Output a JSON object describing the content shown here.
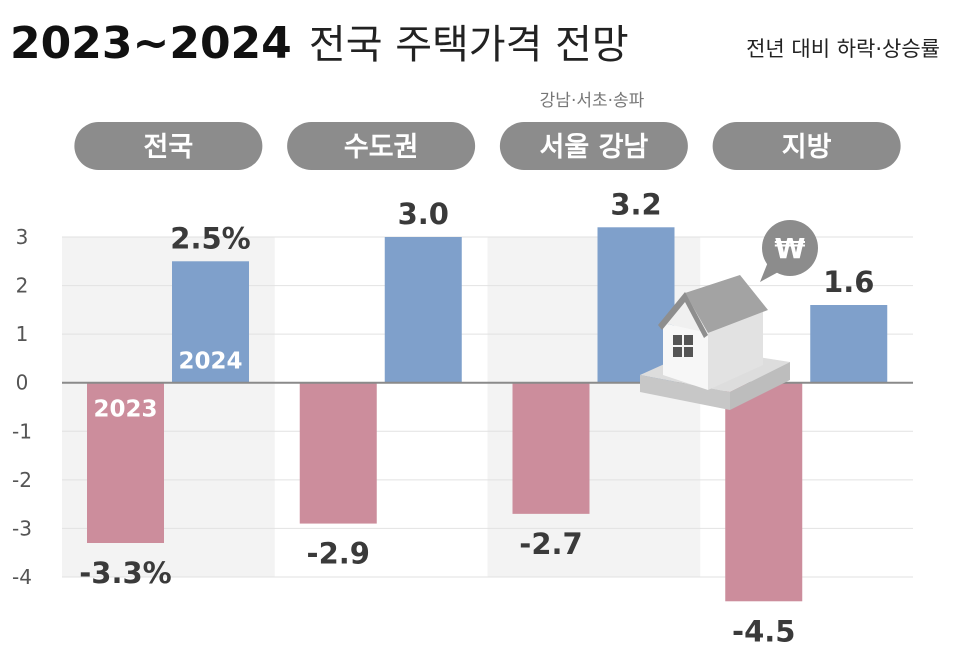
{
  "title": {
    "year_range": "2023~2024",
    "rest": "전국 주택가격 전망"
  },
  "subtitle": "전년 대비 하락·상승률",
  "note": "강남·서초·송파",
  "colors": {
    "bar_2023": "#CC8D9C",
    "bar_2024": "#7FA0CB",
    "pill": "#8C8C8C",
    "band": "#F3F3F3"
  },
  "icons": {
    "house": "house-icon",
    "won": "won-speech-bubble-icon"
  },
  "chart_data": {
    "type": "bar",
    "categories": [
      "전국",
      "수도권",
      "서울 강남",
      "지방"
    ],
    "series": [
      {
        "name": "2023",
        "values": [
          -3.3,
          -2.9,
          -2.7,
          -4.5
        ]
      },
      {
        "name": "2024",
        "values": [
          2.5,
          3.0,
          3.2,
          1.6
        ]
      }
    ],
    "value_labels": {
      "2023": [
        "-3.3%",
        "-2.9",
        "-2.7",
        "-4.5"
      ],
      "2024": [
        "2.5%",
        "3.0",
        "3.2",
        "1.6"
      ]
    },
    "yticks": [
      3,
      2,
      1,
      0,
      -1,
      -2,
      -3,
      -4
    ],
    "ytick_labels": [
      "3",
      "2",
      "1",
      "0",
      "-1",
      "-2",
      "-3",
      "-4"
    ],
    "ylim": [
      -4,
      3
    ],
    "grid": true
  }
}
